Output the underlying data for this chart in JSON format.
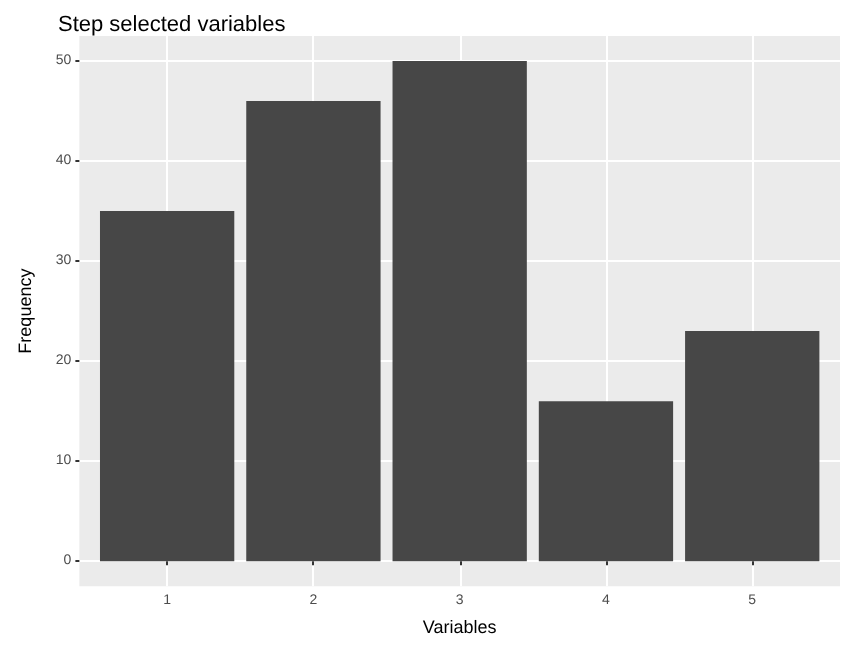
{
  "chart_data": {
    "type": "bar",
    "title": "Step selected variables",
    "xlabel": "Variables",
    "ylabel": "Frequency",
    "categories": [
      "1",
      "2",
      "3",
      "4",
      "5"
    ],
    "values": [
      35,
      46,
      50,
      16,
      23
    ],
    "color": "#474747",
    "ylim": [
      -2.5,
      52.5
    ],
    "yticks": [
      0,
      10,
      20,
      30,
      40,
      50
    ],
    "grid": true
  }
}
